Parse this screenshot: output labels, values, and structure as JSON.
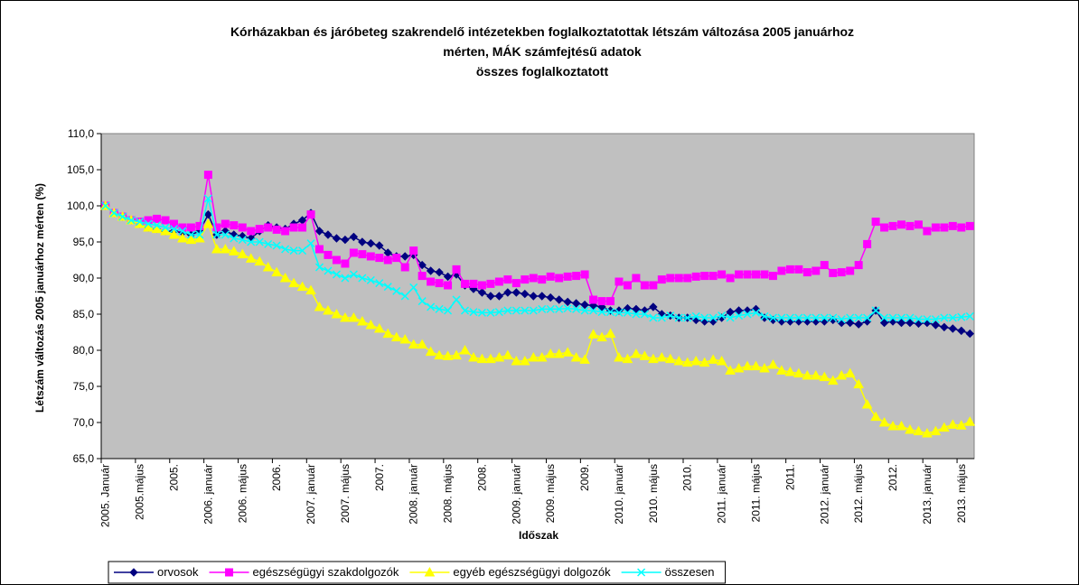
{
  "chart_data": {
    "type": "line",
    "title": [
      "Kórházakban és járóbeteg szakrendelő intézetekben foglalkoztatottak létszám változása 2005 januárhoz",
      "mérten, MÁK számfejtésű adatok",
      "összes foglalkoztatott"
    ],
    "x_label": "Időszak",
    "y_label": "Létszám változás 2005 januárhoz mérten (%)",
    "categories": [
      "2005. Január",
      null,
      null,
      null,
      "2005.május",
      null,
      null,
      null,
      "2005.",
      null,
      null,
      null,
      "2006. január",
      null,
      null,
      null,
      "2006. május",
      null,
      null,
      null,
      "2006.",
      null,
      null,
      null,
      "2007. január",
      null,
      null,
      null,
      "2007. május",
      null,
      null,
      null,
      "2007.",
      null,
      null,
      null,
      "2008. január",
      null,
      null,
      null,
      "2008. május",
      null,
      null,
      null,
      "2008.",
      null,
      null,
      null,
      "2009. január",
      null,
      null,
      null,
      "2009. május",
      null,
      null,
      null,
      "2009.",
      null,
      null,
      null,
      "2010. január",
      null,
      null,
      null,
      "2010. május",
      null,
      null,
      null,
      "2010.",
      null,
      null,
      null,
      "2011. január",
      null,
      null,
      null,
      "2011. május",
      null,
      null,
      null,
      "2011.",
      null,
      null,
      null,
      "2012. január",
      null,
      null,
      null,
      "2012. május",
      null,
      null,
      null,
      "2012.",
      null,
      null,
      null,
      "2013. január",
      null,
      null,
      null,
      "2013. május",
      null
    ],
    "ylim": [
      65,
      110
    ],
    "yticks": [
      {
        "value": 65,
        "label": "65,0"
      },
      {
        "value": 70,
        "label": "70,0"
      },
      {
        "value": 75,
        "label": "75,0"
      },
      {
        "value": 80,
        "label": "80,0"
      },
      {
        "value": 85,
        "label": "85,0"
      },
      {
        "value": 90,
        "label": "90,0"
      },
      {
        "value": 95,
        "label": "95,0"
      },
      {
        "value": 100,
        "label": "100,0"
      },
      {
        "value": 105,
        "label": "105,0"
      },
      {
        "value": 110,
        "label": "110,0"
      }
    ],
    "grid": false,
    "legend": "bottom",
    "plot_background": "#c0c0c0",
    "series": [
      {
        "name": "orvosok",
        "color": "#000080",
        "marker": "diamond",
        "values": [
          100,
          99,
          98.5,
          98,
          97.5,
          97,
          96.8,
          96.5,
          96.5,
          96.3,
          96,
          96.5,
          98.8,
          96,
          96.5,
          96,
          95.8,
          95.5,
          96.5,
          97.3,
          97,
          96.8,
          97.5,
          98,
          99,
          96.5,
          96,
          95.5,
          95.3,
          95.7,
          95,
          94.8,
          94.5,
          93.5,
          93,
          93,
          93.2,
          91.8,
          91,
          90.8,
          90.2,
          90.5,
          89,
          88.5,
          88,
          87.5,
          87.5,
          88,
          88,
          87.8,
          87.5,
          87.5,
          87.3,
          87,
          86.7,
          86.5,
          86.3,
          86.2,
          86,
          85.5,
          85.5,
          85.8,
          85.7,
          85.5,
          86,
          85,
          84.8,
          84.5,
          84.5,
          84.2,
          84,
          84,
          84.5,
          85.3,
          85.5,
          85.5,
          85.7,
          84.5,
          84.2,
          84,
          84,
          84,
          84,
          84,
          84,
          84.2,
          83.8,
          83.8,
          83.6,
          84,
          85.5,
          83.8,
          84,
          83.8,
          83.8,
          83.7,
          83.8,
          83.5,
          83.2,
          83,
          82.7,
          82.3
        ]
      },
      {
        "name": "egészségügyi szakdolgozók",
        "color": "#ff00ff",
        "marker": "square",
        "values": [
          100,
          99,
          98.5,
          98,
          97.8,
          98,
          98.2,
          98,
          97.5,
          97,
          97,
          97.2,
          104.3,
          97,
          97.5,
          97.3,
          97,
          96.5,
          96.8,
          97,
          96.7,
          96.5,
          97,
          97,
          98.8,
          94,
          93.2,
          92.5,
          92,
          93.5,
          93.3,
          93,
          92.8,
          92.5,
          92.8,
          91.5,
          93.8,
          90.3,
          89.5,
          89.3,
          89,
          91.2,
          89.2,
          89.2,
          89,
          89.2,
          89.5,
          89.8,
          89.3,
          89.8,
          90,
          89.8,
          90.2,
          90,
          90.2,
          90.3,
          90.5,
          87,
          86.8,
          86.8,
          89.5,
          89,
          90,
          89,
          89,
          89.8,
          90,
          90,
          90,
          90.2,
          90.3,
          90.3,
          90.5,
          90,
          90.5,
          90.5,
          90.5,
          90.5,
          90.3,
          91,
          91.2,
          91.2,
          90.8,
          91,
          91.8,
          90.7,
          90.8,
          91,
          91.8,
          94.7,
          97.8,
          97,
          97.2,
          97.4,
          97.2,
          97.4,
          96.5,
          97,
          97,
          97.2,
          97,
          97.2
        ]
      },
      {
        "name": "egyéb egészségügyi dolgozók",
        "color": "#ffff00",
        "marker": "triangle",
        "values": [
          100,
          99,
          98.5,
          98,
          97.5,
          97,
          96.8,
          96.5,
          96,
          95.5,
          95.3,
          95.5,
          97.5,
          94,
          94,
          93.7,
          93.3,
          92.7,
          92.3,
          91.5,
          90.8,
          90,
          89.3,
          88.8,
          88.3,
          86,
          85.5,
          85,
          84.5,
          84.5,
          84,
          83.5,
          83,
          82.3,
          81.8,
          81.5,
          80.8,
          80.8,
          79.8,
          79.3,
          79.2,
          79.3,
          80,
          79,
          78.8,
          78.8,
          79,
          79.3,
          78.5,
          78.5,
          79,
          79,
          79.5,
          79.5,
          79.7,
          79,
          78.7,
          82.2,
          81.8,
          82.3,
          79,
          78.8,
          79.5,
          79.2,
          78.8,
          79,
          78.8,
          78.5,
          78.3,
          78.5,
          78.3,
          78.7,
          78.5,
          77.2,
          77.5,
          77.8,
          77.8,
          77.5,
          78,
          77.2,
          77,
          76.8,
          76.5,
          76.5,
          76.3,
          75.8,
          76.5,
          76.8,
          75.3,
          72.5,
          70.8,
          70,
          69.5,
          69.5,
          69,
          68.8,
          68.5,
          68.8,
          69.3,
          69.7,
          69.6,
          70.1
        ]
      },
      {
        "name": "összesen",
        "color": "#00ffff",
        "marker": "x",
        "values": [
          100,
          99,
          98.5,
          98,
          97.8,
          97.5,
          97.3,
          97,
          96.8,
          96.5,
          96,
          96,
          101,
          96,
          96,
          95.5,
          95.3,
          95,
          95,
          94.7,
          94.5,
          94,
          93.8,
          93.8,
          94.8,
          91.5,
          91,
          90.5,
          90,
          90.5,
          90,
          89.7,
          89.3,
          88.8,
          88.2,
          87.5,
          88.7,
          86.8,
          86,
          85.7,
          85.5,
          87,
          85.5,
          85.3,
          85.2,
          85.2,
          85.3,
          85.5,
          85.5,
          85.5,
          85.5,
          85.7,
          85.7,
          85.7,
          85.8,
          85.7,
          85.5,
          85.5,
          85.3,
          85.3,
          85.2,
          85.2,
          85,
          85,
          84.5,
          84.5,
          84.8,
          84.5,
          84.5,
          84.7,
          84.5,
          84.5,
          84.8,
          84.5,
          84.8,
          85,
          85.2,
          84.7,
          84.5,
          84.5,
          84.5,
          84.5,
          84.5,
          84.5,
          84.5,
          84.5,
          84.3,
          84.5,
          84.5,
          84.5,
          85.5,
          84.5,
          84.5,
          84.5,
          84.5,
          84.3,
          84.3,
          84.3,
          84.5,
          84.5,
          84.6,
          84.7
        ]
      }
    ]
  }
}
